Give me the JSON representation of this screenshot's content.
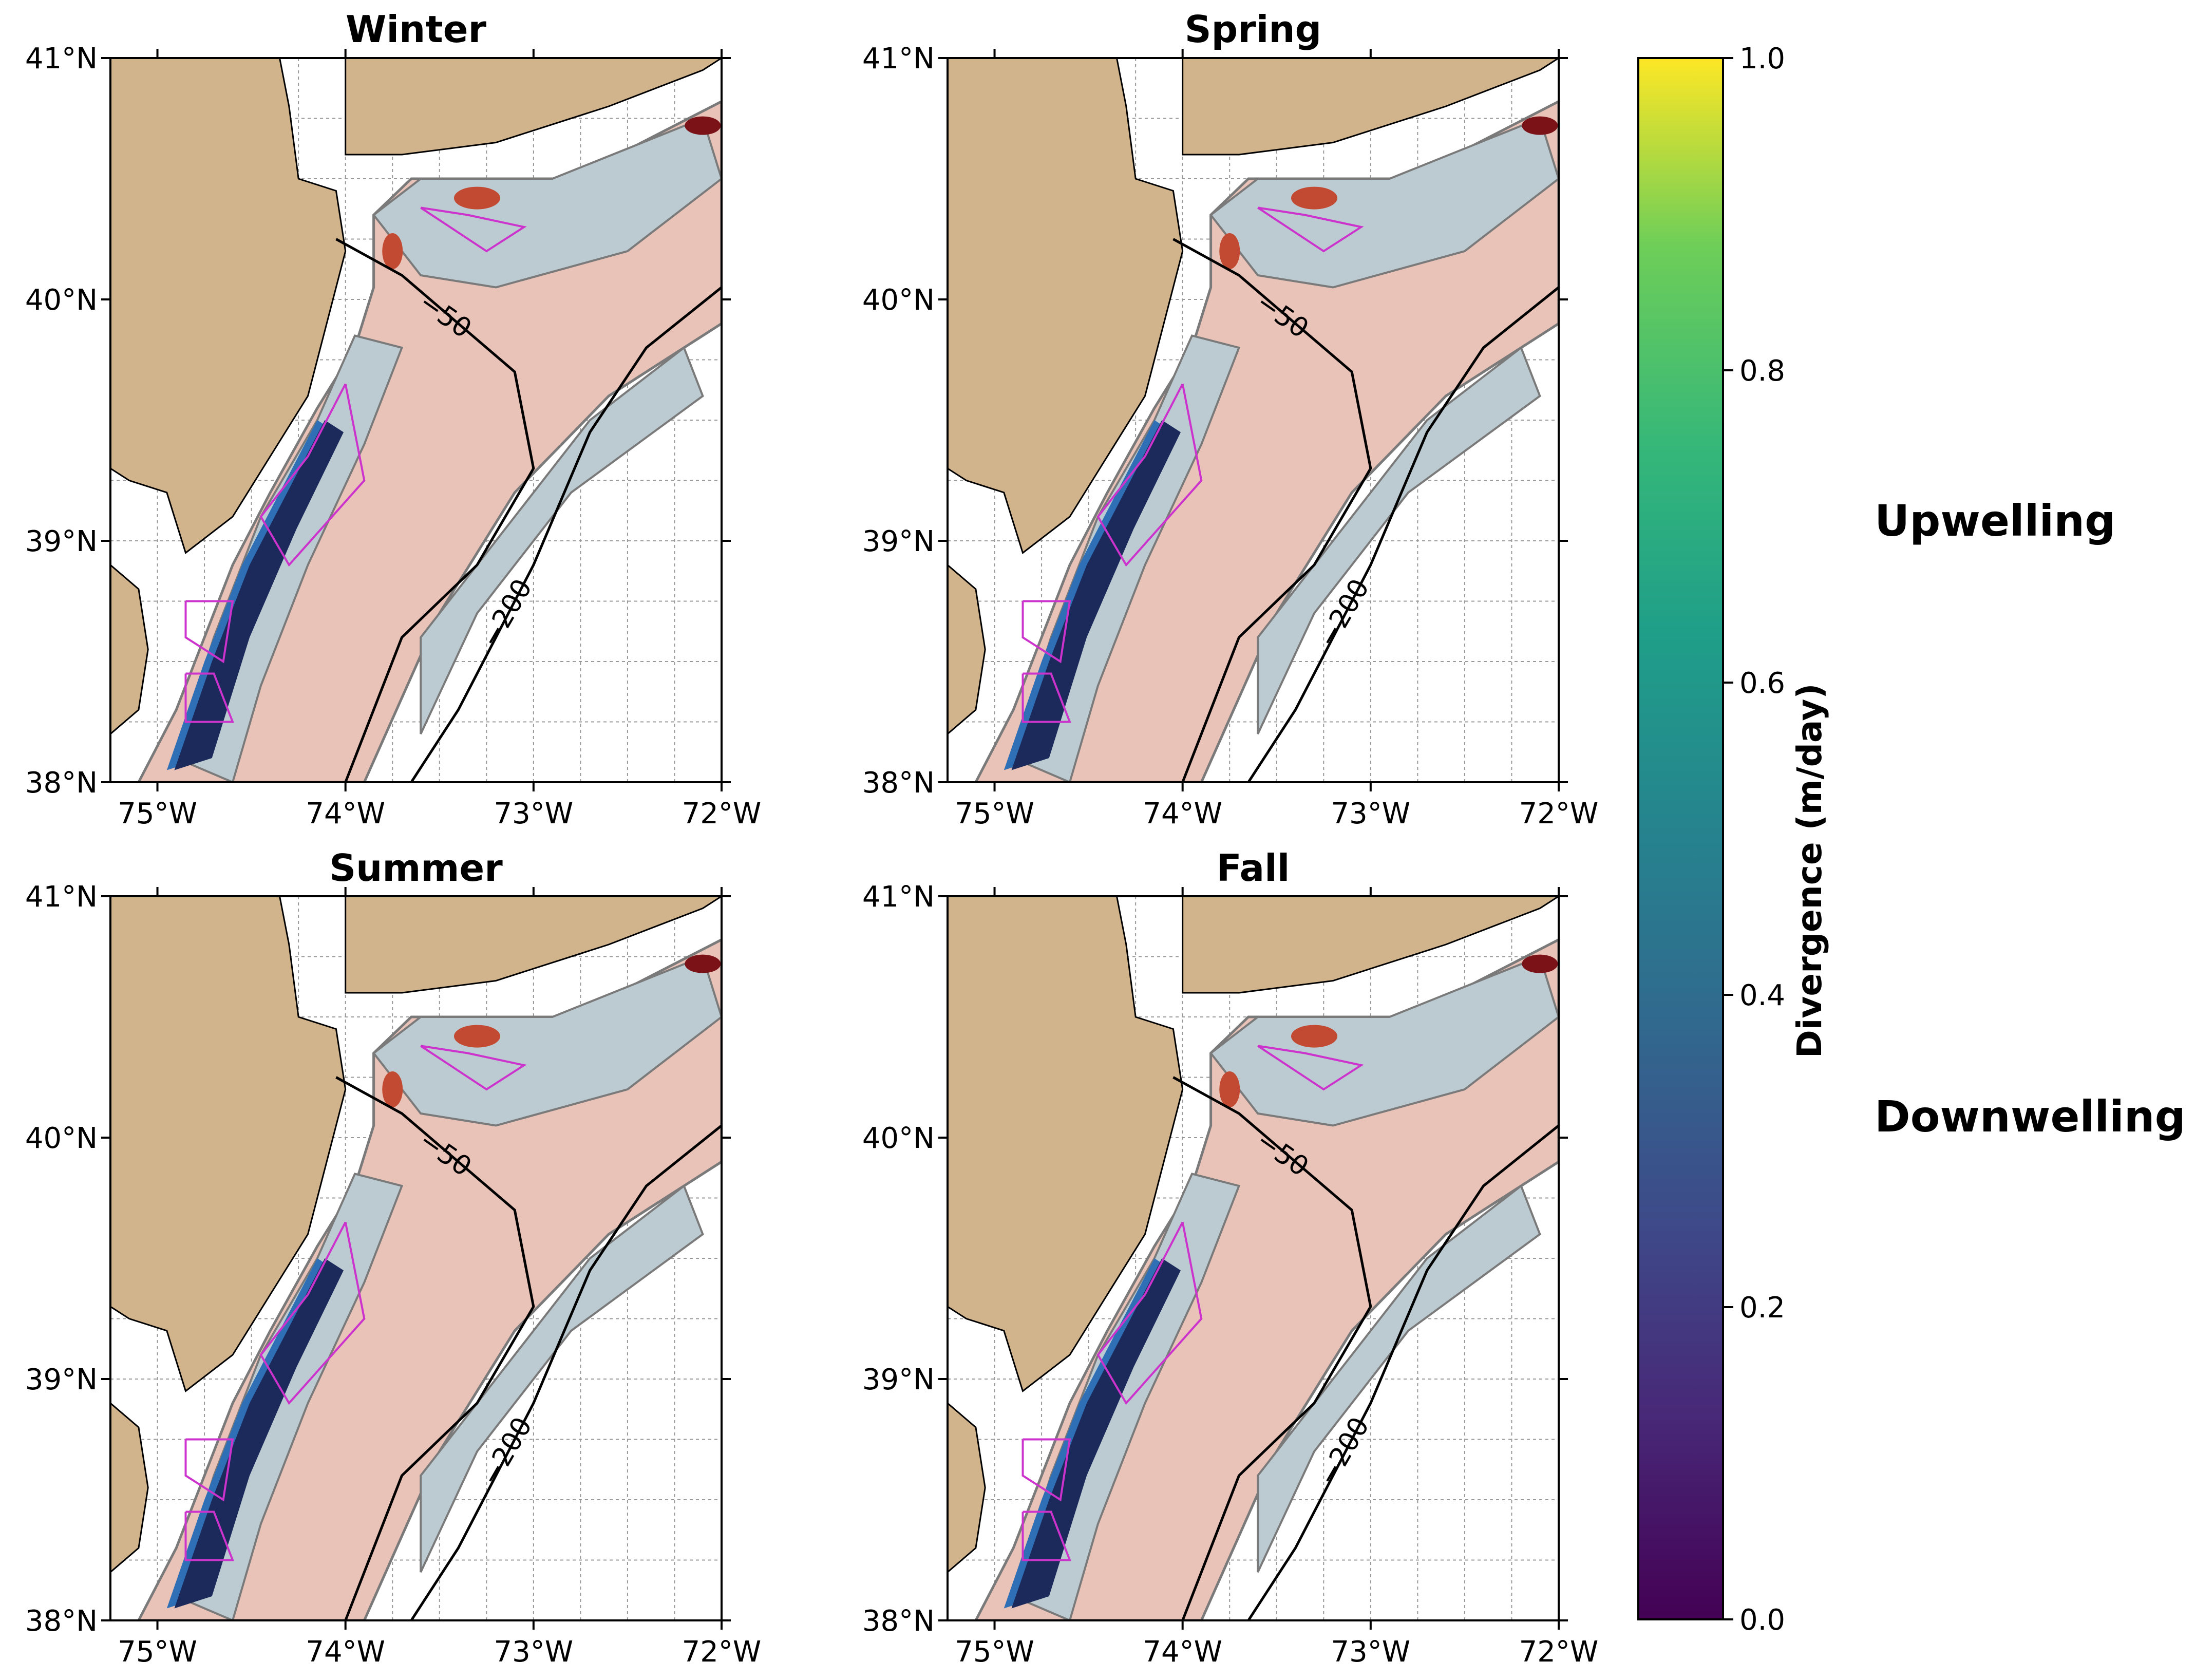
{
  "panels": [
    {
      "title": "Winter"
    },
    {
      "title": "Spring"
    },
    {
      "title": "Summer"
    },
    {
      "title": "Fall"
    }
  ],
  "axes": {
    "lon_ticks": [
      "75°W",
      "74°W",
      "73°W",
      "72°W"
    ],
    "lat_ticks": [
      "41°N",
      "40°N",
      "39°N",
      "38°N"
    ],
    "lon_range": [
      -75.25,
      -72.0
    ],
    "lat_range": [
      38.0,
      41.0
    ]
  },
  "contour_labels": {
    "shallow": "−50",
    "deep": "−200"
  },
  "colorbar": {
    "label": "Divergence (m/day)",
    "ticks": [
      "0.0",
      "0.2",
      "0.4",
      "0.6",
      "0.8",
      "1.0"
    ],
    "range": [
      0.0,
      1.0
    ],
    "colormap": "viridis"
  },
  "annotations": {
    "upper": "Upwelling",
    "lower": "Downwelling"
  },
  "colors": {
    "land": "#d2b48c",
    "neutral_neg": "#bccbd2",
    "neutral_pos": "#e9c2b8",
    "strong_down": "#1b2a5a",
    "mid_down": "#2f6fb6",
    "light_down": "#6fa6d8",
    "strong_up": "#7a1218",
    "mid_up": "#c24a32",
    "wind_area": "#cc33cc"
  }
}
